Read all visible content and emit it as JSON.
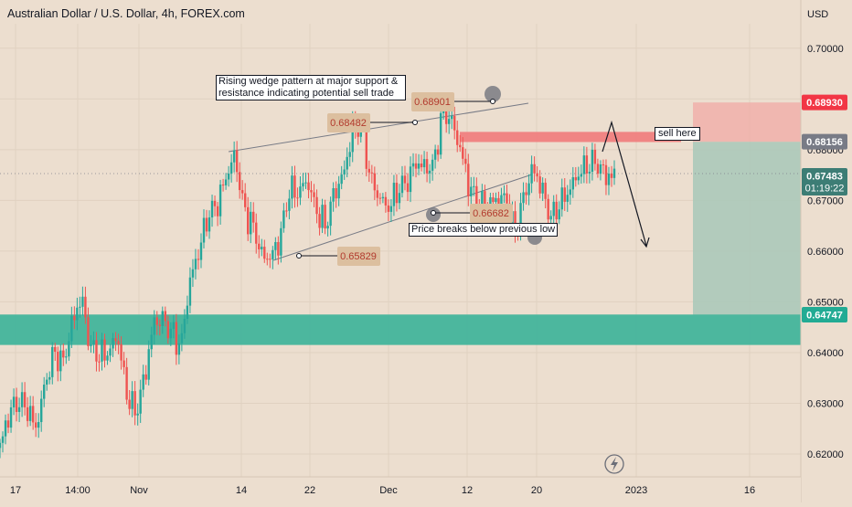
{
  "header": {
    "title": "Australian Dollar / U.S. Dollar, 4h, FOREX.com"
  },
  "chart_data": {
    "type": "candlestick",
    "title": "Australian Dollar / U.S. Dollar, 4h, FOREX.com",
    "currency": "USD",
    "ylim": [
      0.6155,
      0.7095
    ],
    "y_ticks": [
      "0.70000",
      "0.69000",
      "0.68000",
      "0.67000",
      "0.66000",
      "0.65000",
      "0.64000",
      "0.63000",
      "0.62000"
    ],
    "x_ticks": [
      "17",
      "14:00",
      "Nov",
      "14",
      "22",
      "Dec",
      "12",
      "20",
      "2023",
      "16"
    ],
    "grid": true,
    "up_color": "#26a69a",
    "down_color": "#ef5350",
    "price_labels": [
      {
        "value": "0.68930",
        "color": "#f23645"
      },
      {
        "value": "0.68156",
        "color": "#787b86"
      },
      {
        "value": "0.67483",
        "color": "#3d7d75"
      },
      {
        "value": "0.64747",
        "color": "#22ab94"
      }
    ],
    "countdown": "01:19:22",
    "annotations": {
      "wedge_note": "Rising wedge pattern at major support & resistance indicating potential sell trade",
      "sell_note": "sell here",
      "break_note": "Price breaks below previous low",
      "point_labels": [
        "0.68482",
        "0.68901",
        "0.66682",
        "0.65829"
      ]
    },
    "zones": [
      {
        "name": "resistance",
        "from": 0.6815,
        "to": 0.6835,
        "color": "#f08080"
      },
      {
        "name": "support",
        "from": 0.6415,
        "to": 0.6475,
        "color": "#3eb39a"
      }
    ],
    "trade": {
      "entry": 0.68156,
      "stop": 0.6893,
      "target": 0.64747
    },
    "price_path": [
      0.6215,
      0.628,
      0.6305,
      0.629,
      0.625,
      0.634,
      0.64,
      0.638,
      0.646,
      0.651,
      0.641,
      0.6395,
      0.64,
      0.6435,
      0.632,
      0.628,
      0.635,
      0.646,
      0.6465,
      0.644,
      0.641,
      0.654,
      0.66,
      0.667,
      0.669,
      0.6745,
      0.679,
      0.668,
      0.665,
      0.659,
      0.6588,
      0.6625,
      0.672,
      0.6715,
      0.674,
      0.668,
      0.665,
      0.6715,
      0.675,
      0.6835,
      0.6848,
      0.6742,
      0.6705,
      0.6685,
      0.672,
      0.6735,
      0.6775,
      0.6765,
      0.6768,
      0.688,
      0.6855,
      0.6798,
      0.6722,
      0.6695,
      0.6688,
      0.6703,
      0.6705,
      0.663,
      0.671,
      0.6765,
      0.672,
      0.6665,
      0.6695,
      0.672,
      0.6752,
      0.677,
      0.6776,
      0.6748,
      0.6748
    ]
  }
}
